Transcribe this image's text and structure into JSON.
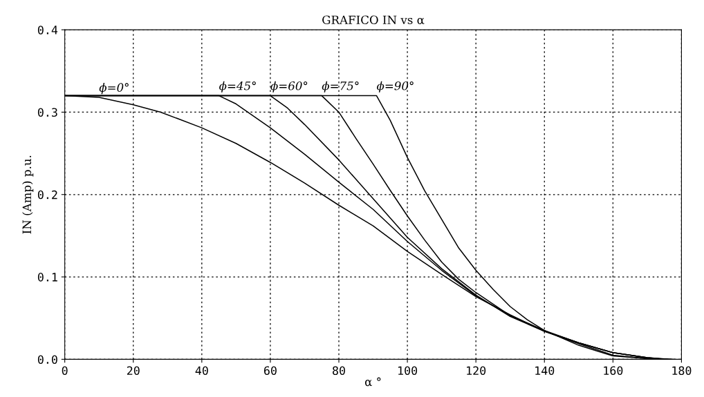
{
  "chart_data": {
    "type": "line",
    "title": "GRAFICO IN vs α",
    "xlabel": "α °",
    "ylabel": "IN (Amp) p.u.",
    "xlim": [
      0,
      180
    ],
    "xticks": [
      0,
      20,
      40,
      60,
      80,
      100,
      120,
      140,
      160,
      180
    ],
    "ylim": [
      0.0,
      0.4
    ],
    "yticks": [
      {
        "value": 0,
        "label": "0.0"
      },
      0.1,
      0.2,
      0.3,
      0.4
    ],
    "grid": true,
    "legend": false,
    "marker": "none",
    "line_style": "solid",
    "series": [
      {
        "name": "ϕ=0°",
        "color": "#000000",
        "x": [
          0,
          10,
          20,
          28,
          40,
          50,
          60,
          70,
          80,
          90,
          100,
          110,
          120,
          130,
          140,
          150,
          160,
          170,
          178
        ],
        "values": [
          0.32,
          0.318,
          0.309,
          0.3,
          0.281,
          0.262,
          0.239,
          0.214,
          0.187,
          0.162,
          0.131,
          0.103,
          0.076,
          0.054,
          0.034,
          0.019,
          0.005,
          0.001,
          0.0
        ]
      },
      {
        "name": "ϕ=45°",
        "color": "#000000",
        "x": [
          0,
          45,
          50,
          60,
          70,
          80,
          90,
          100,
          110,
          120,
          130,
          140,
          150,
          160,
          170,
          177
        ],
        "values": [
          0.32,
          0.32,
          0.31,
          0.281,
          0.249,
          0.215,
          0.182,
          0.143,
          0.108,
          0.077,
          0.053,
          0.034,
          0.02,
          0.008,
          0.002,
          0.0
        ]
      },
      {
        "name": "ϕ=60°",
        "color": "#000000",
        "x": [
          0,
          60,
          65,
          70,
          80,
          90,
          100,
          110,
          120,
          130,
          140,
          150,
          160,
          170,
          176
        ],
        "values": [
          0.32,
          0.32,
          0.305,
          0.285,
          0.242,
          0.195,
          0.148,
          0.11,
          0.078,
          0.052,
          0.034,
          0.02,
          0.008,
          0.002,
          0.0
        ]
      },
      {
        "name": "ϕ=75°",
        "color": "#000000",
        "x": [
          0,
          75,
          80,
          85,
          90,
          95,
          100,
          105,
          110,
          115,
          120,
          130,
          140,
          150,
          160,
          170,
          175
        ],
        "values": [
          0.32,
          0.32,
          0.3,
          0.268,
          0.237,
          0.205,
          0.174,
          0.145,
          0.118,
          0.097,
          0.081,
          0.053,
          0.035,
          0.02,
          0.008,
          0.002,
          0.0
        ]
      },
      {
        "name": "ϕ=90°",
        "color": "#000000",
        "x": [
          0,
          91,
          95,
          100,
          105,
          110,
          115,
          120,
          125,
          130,
          135,
          140,
          150,
          160,
          170,
          174
        ],
        "values": [
          0.32,
          0.32,
          0.29,
          0.245,
          0.205,
          0.17,
          0.135,
          0.108,
          0.085,
          0.064,
          0.048,
          0.035,
          0.017,
          0.004,
          0.001,
          0.0
        ]
      }
    ]
  }
}
